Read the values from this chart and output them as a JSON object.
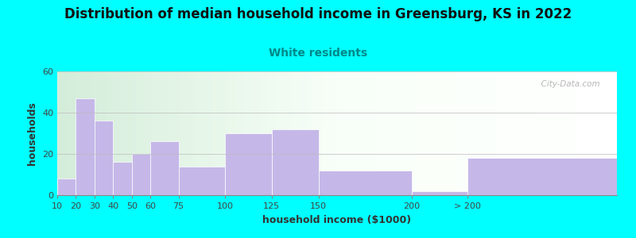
{
  "title": "Distribution of median household income in Greensburg, KS in 2022",
  "subtitle": "White residents",
  "subtitle_color": "#008888",
  "xlabel": "household income ($1000)",
  "ylabel": "households",
  "bar_values": [
    8,
    47,
    36,
    16,
    20,
    26,
    14,
    30,
    32,
    12,
    2,
    18
  ],
  "bar_lefts": [
    10,
    20,
    30,
    40,
    50,
    60,
    75,
    100,
    125,
    150,
    200,
    230
  ],
  "bar_widths": [
    10,
    10,
    10,
    10,
    10,
    15,
    25,
    25,
    25,
    50,
    50,
    80
  ],
  "bar_color": "#c5b8e8",
  "bar_edgecolor": "#ffffff",
  "ylim": [
    0,
    60
  ],
  "yticks": [
    0,
    20,
    40,
    60
  ],
  "xtick_labels": [
    "10",
    "20",
    "30",
    "40",
    "50",
    "60",
    "75",
    "100",
    "125",
    "150",
    "200",
    "> 200"
  ],
  "figure_bg": "#00ffff",
  "title_fontsize": 12,
  "subtitle_fontsize": 10,
  "axis_label_fontsize": 9,
  "tick_fontsize": 8,
  "watermark": "  City-Data.com",
  "xlim_left": 10,
  "xlim_right": 310
}
